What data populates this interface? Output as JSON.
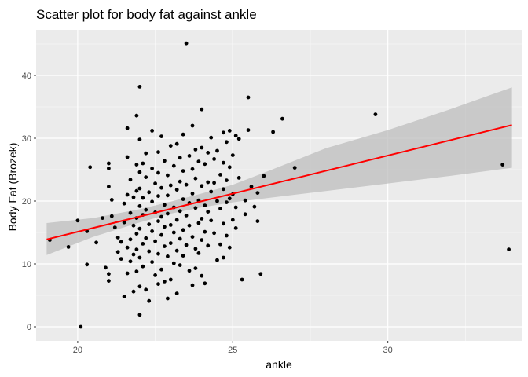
{
  "chart_data": {
    "type": "scatter",
    "title": "Scatter plot for body fat against ankle",
    "xlabel": "ankle",
    "ylabel": "Body Fat (Brozek)",
    "xlim": [
      18.66,
      34.34
    ],
    "ylim": [
      -2.25,
      47.25
    ],
    "x_ticks": [
      20,
      25,
      30
    ],
    "y_ticks": [
      0,
      10,
      20,
      30,
      40
    ],
    "grid": true,
    "legend": "none",
    "colors": {
      "panel_bg": "#EBEBEB",
      "grid_major": "#FFFFFF",
      "point": "#000000",
      "fit_line": "#FF0000",
      "confidence_band": "#BEBEBE"
    },
    "fit": {
      "x": [
        19.0,
        34.0
      ],
      "y": [
        13.9,
        32.1
      ],
      "ci_x": [
        19.0,
        20.5,
        22.0,
        23.0,
        24.0,
        25.0,
        26.0,
        28.0,
        30.0,
        32.0,
        34.0
      ],
      "ci_lower": [
        11.4,
        14.3,
        16.6,
        18.0,
        19.0,
        19.8,
        20.4,
        21.6,
        22.8,
        24.0,
        25.3
      ],
      "ci_upper": [
        16.5,
        17.3,
        18.7,
        19.9,
        21.2,
        22.6,
        24.5,
        28.4,
        31.3,
        34.6,
        38.1
      ]
    },
    "series": [
      {
        "points": [
          [
            19.1,
            13.8
          ],
          [
            19.7,
            12.7
          ],
          [
            20.0,
            16.9
          ],
          [
            20.1,
            0.0
          ],
          [
            20.3,
            15.2
          ],
          [
            20.3,
            9.9
          ],
          [
            20.4,
            25.4
          ],
          [
            20.6,
            13.4
          ],
          [
            20.8,
            17.3
          ],
          [
            20.9,
            9.4
          ],
          [
            21.0,
            26.0
          ],
          [
            21.0,
            25.2
          ],
          [
            21.0,
            22.3
          ],
          [
            21.0,
            8.4
          ],
          [
            21.0,
            7.3
          ],
          [
            21.1,
            20.2
          ],
          [
            21.1,
            17.6
          ],
          [
            21.2,
            15.8
          ],
          [
            21.3,
            14.2
          ],
          [
            21.3,
            11.9
          ],
          [
            21.4,
            13.5
          ],
          [
            21.4,
            10.8
          ],
          [
            21.5,
            19.6
          ],
          [
            21.5,
            16.6
          ],
          [
            21.5,
            4.8
          ],
          [
            21.6,
            31.6
          ],
          [
            21.6,
            27.0
          ],
          [
            21.6,
            21.0
          ],
          [
            21.6,
            12.6
          ],
          [
            21.6,
            8.5
          ],
          [
            21.7,
            23.4
          ],
          [
            21.7,
            18.1
          ],
          [
            21.7,
            13.9
          ],
          [
            21.7,
            10.4
          ],
          [
            21.8,
            20.6
          ],
          [
            21.8,
            16.1
          ],
          [
            21.8,
            11.5
          ],
          [
            21.8,
            5.6
          ],
          [
            21.9,
            33.6
          ],
          [
            21.9,
            25.8
          ],
          [
            21.9,
            21.6
          ],
          [
            21.9,
            17.3
          ],
          [
            21.9,
            14.8
          ],
          [
            21.9,
            12.3
          ],
          [
            21.9,
            8.8
          ],
          [
            22.0,
            38.2
          ],
          [
            22.0,
            29.8
          ],
          [
            22.0,
            24.6
          ],
          [
            22.0,
            22.0
          ],
          [
            22.0,
            19.2
          ],
          [
            22.0,
            15.6
          ],
          [
            22.0,
            11.0
          ],
          [
            22.0,
            6.4
          ],
          [
            22.0,
            1.9
          ],
          [
            22.1,
            26.0
          ],
          [
            22.1,
            20.5
          ],
          [
            22.1,
            17.8
          ],
          [
            22.1,
            13.2
          ],
          [
            22.1,
            9.6
          ],
          [
            22.2,
            27.6
          ],
          [
            22.2,
            23.8
          ],
          [
            22.2,
            18.6
          ],
          [
            22.2,
            14.1
          ],
          [
            22.2,
            5.9
          ],
          [
            22.3,
            21.4
          ],
          [
            22.3,
            16.3
          ],
          [
            22.3,
            12.0
          ],
          [
            22.3,
            4.1
          ],
          [
            22.4,
            31.2
          ],
          [
            22.4,
            25.2
          ],
          [
            22.4,
            19.9
          ],
          [
            22.4,
            15.2
          ],
          [
            22.4,
            10.3
          ],
          [
            22.5,
            22.8
          ],
          [
            22.5,
            18.2
          ],
          [
            22.5,
            13.6
          ],
          [
            22.5,
            8.2
          ],
          [
            22.6,
            27.8
          ],
          [
            22.6,
            24.5
          ],
          [
            22.6,
            20.8
          ],
          [
            22.6,
            16.8
          ],
          [
            22.6,
            11.6
          ],
          [
            22.6,
            6.8
          ],
          [
            22.7,
            30.3
          ],
          [
            22.7,
            22.1
          ],
          [
            22.7,
            17.5
          ],
          [
            22.7,
            14.6
          ],
          [
            22.7,
            9.1
          ],
          [
            22.8,
            26.4
          ],
          [
            22.8,
            19.4
          ],
          [
            22.8,
            15.9
          ],
          [
            22.8,
            12.8
          ],
          [
            22.8,
            7.2
          ],
          [
            22.9,
            24.1
          ],
          [
            22.9,
            20.9
          ],
          [
            22.9,
            18.0
          ],
          [
            22.9,
            11.2
          ],
          [
            22.9,
            4.5
          ],
          [
            23.0,
            28.8
          ],
          [
            23.0,
            22.5
          ],
          [
            23.0,
            16.2
          ],
          [
            23.0,
            13.3
          ],
          [
            23.0,
            7.5
          ],
          [
            23.1,
            25.6
          ],
          [
            23.1,
            19.0
          ],
          [
            23.1,
            15.0
          ],
          [
            23.1,
            10.1
          ],
          [
            23.2,
            29.1
          ],
          [
            23.2,
            21.8
          ],
          [
            23.2,
            17.0
          ],
          [
            23.2,
            12.1
          ],
          [
            23.2,
            5.3
          ],
          [
            23.3,
            26.9
          ],
          [
            23.3,
            23.1
          ],
          [
            23.3,
            18.4
          ],
          [
            23.3,
            14.0
          ],
          [
            23.3,
            9.8
          ],
          [
            23.4,
            30.6
          ],
          [
            23.4,
            24.8
          ],
          [
            23.4,
            20.3
          ],
          [
            23.4,
            15.4
          ],
          [
            23.4,
            11.3
          ],
          [
            23.5,
            45.1
          ],
          [
            23.5,
            22.6
          ],
          [
            23.5,
            17.7
          ],
          [
            23.5,
            13.0
          ],
          [
            23.6,
            27.2
          ],
          [
            23.6,
            19.7
          ],
          [
            23.6,
            16.1
          ],
          [
            23.6,
            8.9
          ],
          [
            23.7,
            32.0
          ],
          [
            23.7,
            25.1
          ],
          [
            23.7,
            21.2
          ],
          [
            23.7,
            14.3
          ],
          [
            23.7,
            6.6
          ],
          [
            23.8,
            28.2
          ],
          [
            23.8,
            23.6
          ],
          [
            23.8,
            18.9
          ],
          [
            23.8,
            12.4
          ],
          [
            23.8,
            9.3
          ],
          [
            23.9,
            26.3
          ],
          [
            23.9,
            20.1
          ],
          [
            23.9,
            16.5
          ],
          [
            23.9,
            11.7
          ],
          [
            24.0,
            34.6
          ],
          [
            24.0,
            28.5
          ],
          [
            24.0,
            22.4
          ],
          [
            24.0,
            17.2
          ],
          [
            24.0,
            13.8
          ],
          [
            24.0,
            8.1
          ],
          [
            24.1,
            25.9
          ],
          [
            24.1,
            19.3
          ],
          [
            24.1,
            15.1
          ],
          [
            24.1,
            6.9
          ],
          [
            24.2,
            27.7
          ],
          [
            24.2,
            23.0
          ],
          [
            24.2,
            18.3
          ],
          [
            24.2,
            12.9
          ],
          [
            24.3,
            30.1
          ],
          [
            24.3,
            21.5
          ],
          [
            24.3,
            16.9
          ],
          [
            24.4,
            26.7
          ],
          [
            24.4,
            22.9
          ],
          [
            24.4,
            14.9
          ],
          [
            24.5,
            28.0
          ],
          [
            24.5,
            20.0
          ],
          [
            24.5,
            10.6
          ],
          [
            24.6,
            24.2
          ],
          [
            24.6,
            18.8
          ],
          [
            24.6,
            13.1
          ],
          [
            24.7,
            30.9
          ],
          [
            24.7,
            26.1
          ],
          [
            24.7,
            21.9
          ],
          [
            24.7,
            16.4
          ],
          [
            24.7,
            11.0
          ],
          [
            24.8,
            29.4
          ],
          [
            24.8,
            23.3
          ],
          [
            24.8,
            19.8
          ],
          [
            24.8,
            14.5
          ],
          [
            24.9,
            31.2
          ],
          [
            24.9,
            25.4
          ],
          [
            24.9,
            20.4
          ],
          [
            24.9,
            12.6
          ],
          [
            25.0,
            27.3
          ],
          [
            25.0,
            21.1
          ],
          [
            25.0,
            17.0
          ],
          [
            25.1,
            30.4
          ],
          [
            25.1,
            19.0
          ],
          [
            25.1,
            15.7
          ],
          [
            25.2,
            29.9
          ],
          [
            25.2,
            23.7
          ],
          [
            25.3,
            7.5
          ],
          [
            25.4,
            20.1
          ],
          [
            25.4,
            17.9
          ],
          [
            25.5,
            36.5
          ],
          [
            25.5,
            31.3
          ],
          [
            25.6,
            22.3
          ],
          [
            25.7,
            19.1
          ],
          [
            25.8,
            21.3
          ],
          [
            25.8,
            16.8
          ],
          [
            25.9,
            8.4
          ],
          [
            26.0,
            24.0
          ],
          [
            26.3,
            31.0
          ],
          [
            26.6,
            33.1
          ],
          [
            27.0,
            25.3
          ],
          [
            29.6,
            33.8
          ],
          [
            33.7,
            25.8
          ],
          [
            33.9,
            12.3
          ]
        ]
      }
    ]
  }
}
